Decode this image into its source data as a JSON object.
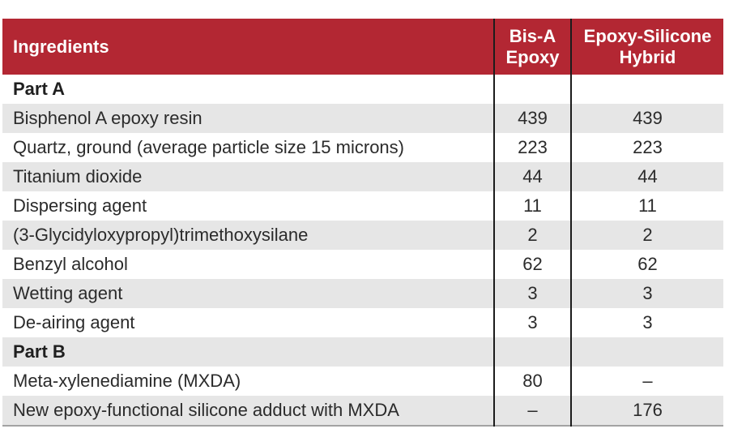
{
  "colors": {
    "header_bg": "#b32733",
    "header_text": "#ffffff",
    "row_alt_bg": "#e6e6e6",
    "row_bg": "#ffffff",
    "body_text": "#2b2b2b",
    "column_divider": "#1c1c1c",
    "table_bottom_rule": "#a3a3a3"
  },
  "table": {
    "columns": [
      {
        "label": "Ingredients"
      },
      {
        "label": "Bis-A Epoxy"
      },
      {
        "label": "Epoxy-Silicone Hybrid"
      }
    ],
    "rows": [
      {
        "kind": "section",
        "cells": [
          "Part A",
          "",
          ""
        ]
      },
      {
        "kind": "data",
        "cells": [
          "Bisphenol A epoxy resin",
          "439",
          "439"
        ]
      },
      {
        "kind": "data",
        "cells": [
          "Quartz, ground (average particle size 15 microns)",
          "223",
          "223"
        ]
      },
      {
        "kind": "data",
        "cells": [
          "Titanium dioxide",
          "44",
          "44"
        ]
      },
      {
        "kind": "data",
        "cells": [
          "Dispersing agent",
          "11",
          "11"
        ]
      },
      {
        "kind": "data",
        "cells": [
          "(3-Glycidyloxypropyl)trimethoxysilane",
          "2",
          "2"
        ]
      },
      {
        "kind": "data",
        "cells": [
          "Benzyl alcohol",
          "62",
          "62"
        ]
      },
      {
        "kind": "data",
        "cells": [
          "Wetting agent",
          "3",
          "3"
        ]
      },
      {
        "kind": "data",
        "cells": [
          "De-airing agent",
          "3",
          "3"
        ]
      },
      {
        "kind": "section",
        "cells": [
          "Part B",
          "",
          ""
        ]
      },
      {
        "kind": "data",
        "cells": [
          "Meta-xylenediamine (MXDA)",
          "80",
          "–"
        ]
      },
      {
        "kind": "data",
        "cells": [
          "New epoxy-functional silicone adduct with MXDA",
          "–",
          "176"
        ]
      }
    ]
  }
}
